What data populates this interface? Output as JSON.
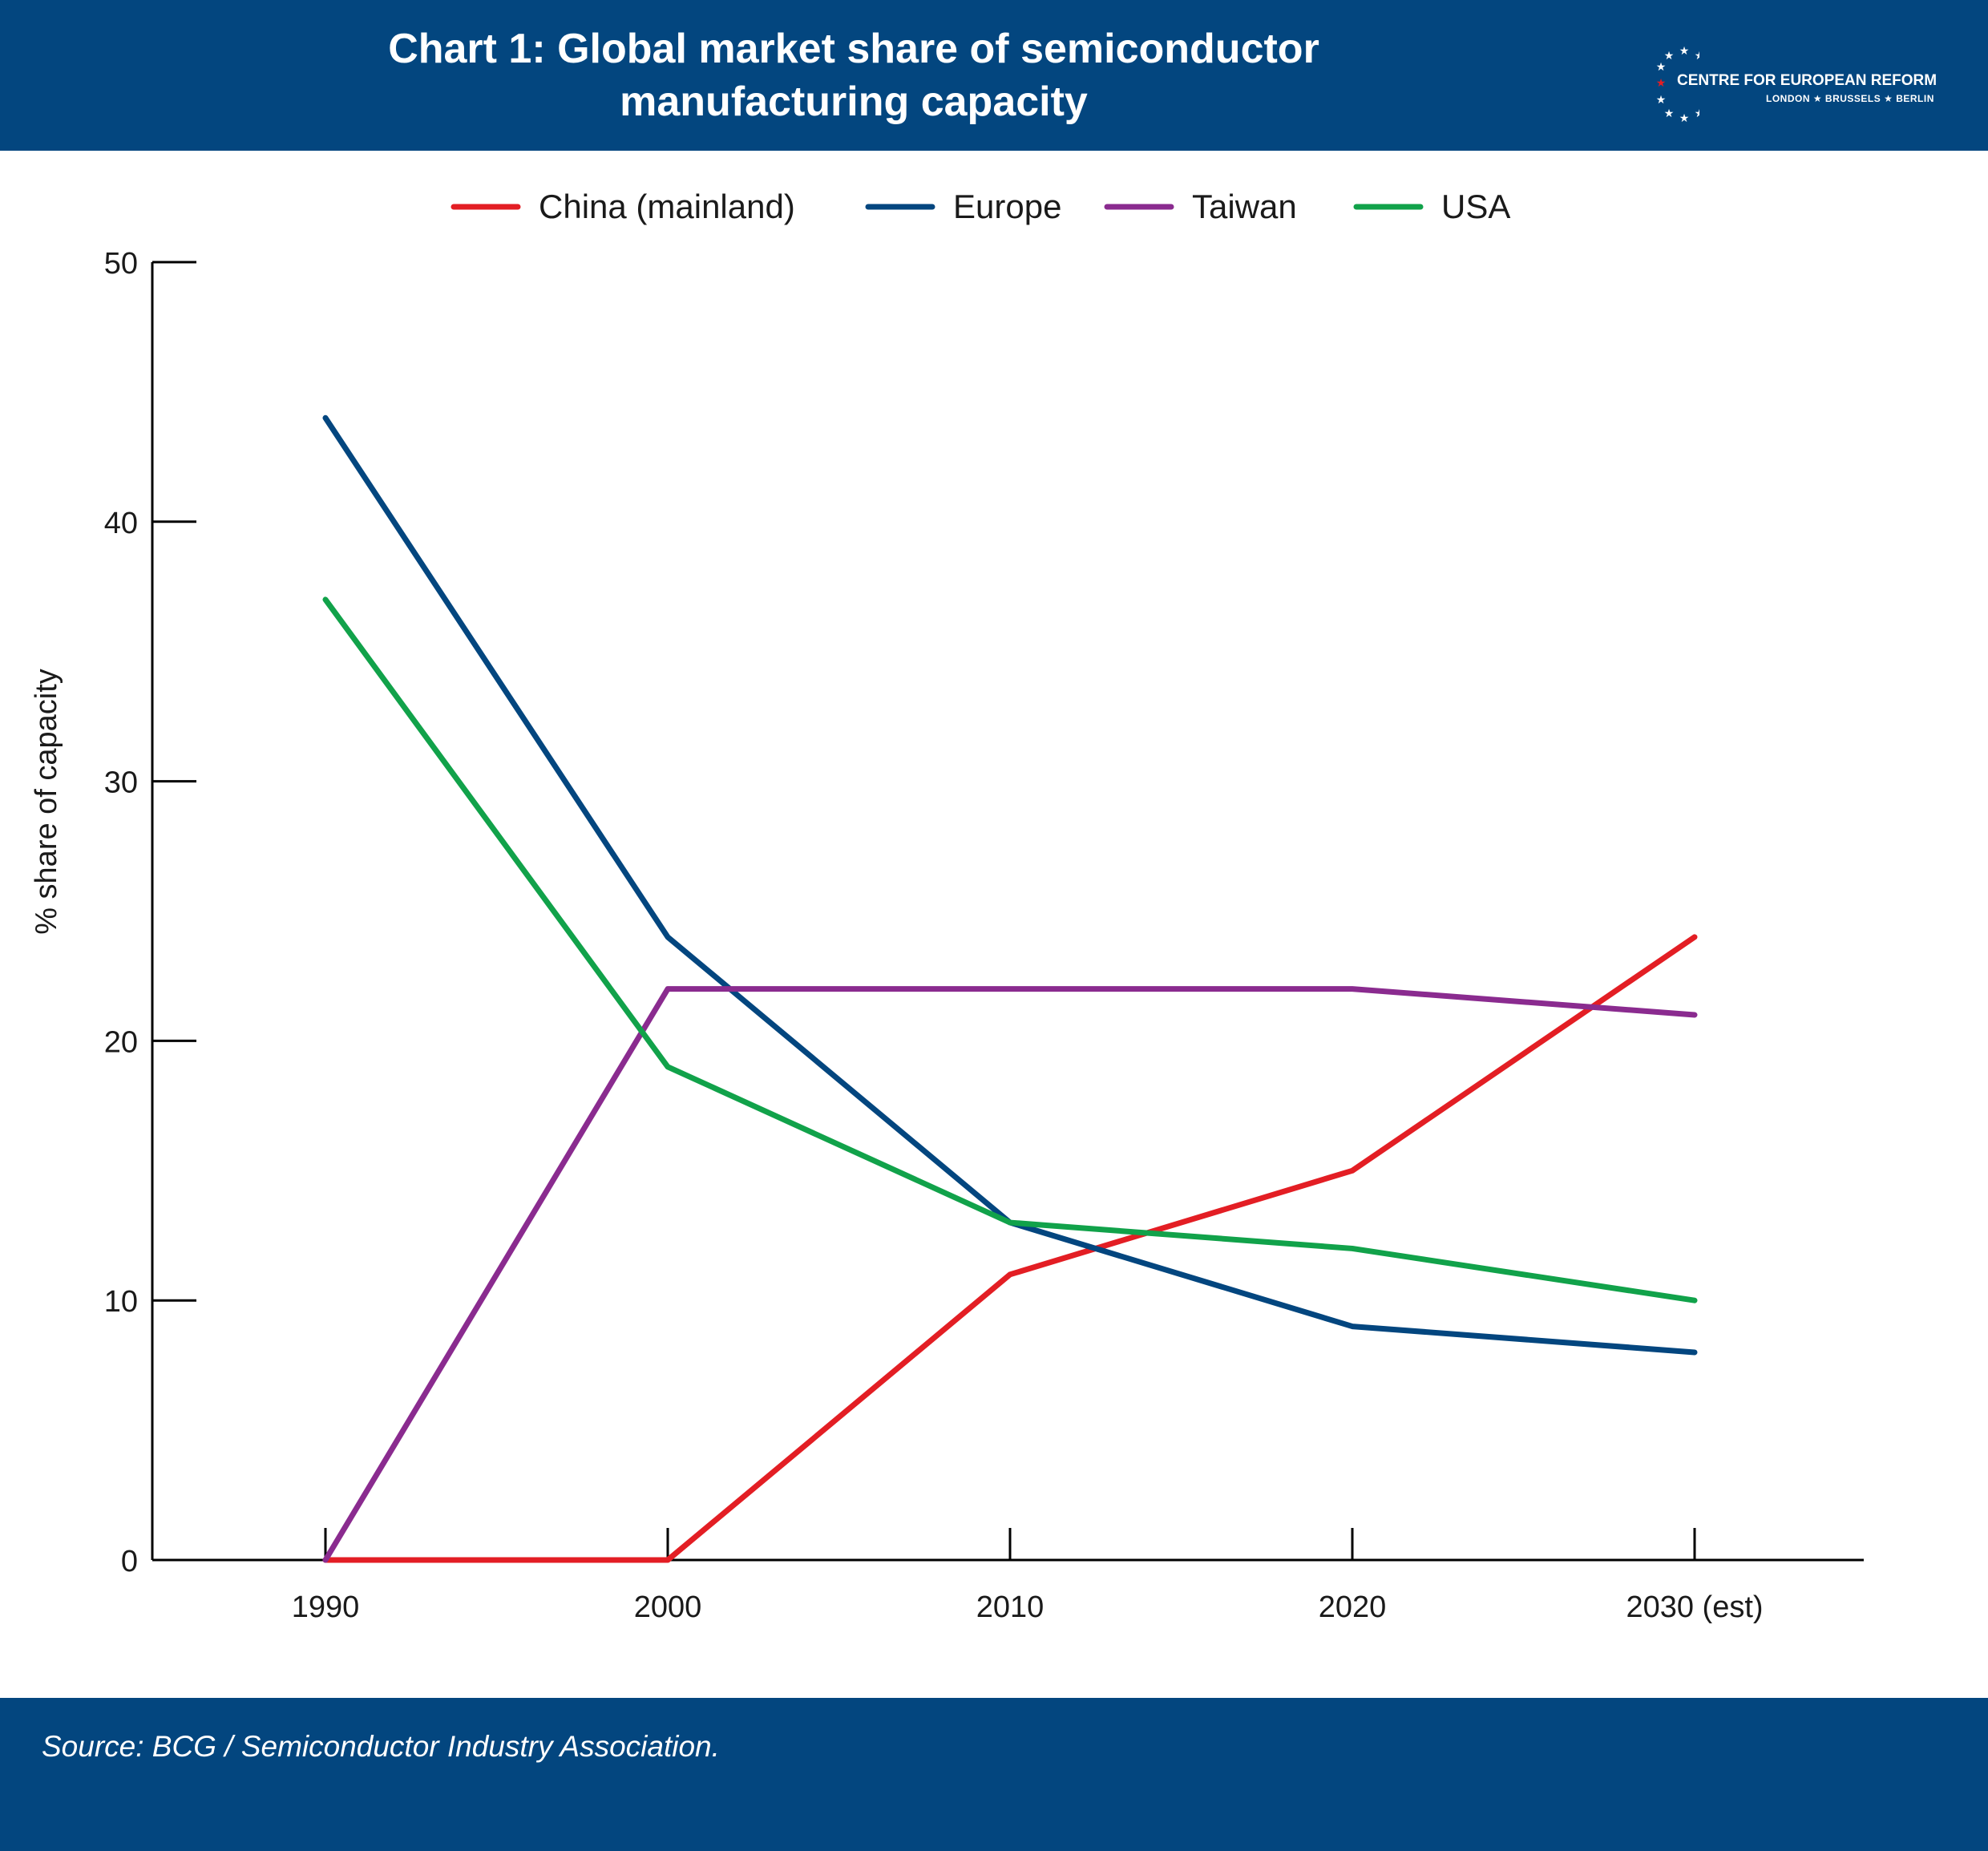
{
  "header": {
    "title": "Chart 1: Global market share of semiconductor manufacturing capacity",
    "logo": {
      "name": "CENTRE FOR EUROPEAN REFORM",
      "cities": "LONDON ★ BRUSSELS ★ BERLIN"
    }
  },
  "footer": {
    "source": "Source: BCG / Semiconductor Industry Association."
  },
  "colors": {
    "brand_blue": "#03467f",
    "china": "#e31e24",
    "europe": "#03467f",
    "taiwan": "#8a2b8f",
    "usa": "#11a24a"
  },
  "chart_data": {
    "type": "line",
    "title": "Chart 1: Global market share of semiconductor manufacturing capacity",
    "xlabel": "",
    "ylabel": "% share of capacity",
    "categories": [
      "1990",
      "2000",
      "2010",
      "2020",
      "2030 (est)"
    ],
    "ylim": [
      0,
      50
    ],
    "yticks": [
      0,
      10,
      20,
      30,
      40,
      50
    ],
    "grid": false,
    "legend": "top-center",
    "series": [
      {
        "name": "China (mainland)",
        "color": "#e31e24",
        "values": [
          0,
          0,
          11,
          15,
          24
        ]
      },
      {
        "name": "Europe",
        "color": "#03467f",
        "values": [
          44,
          24,
          13,
          9,
          8
        ]
      },
      {
        "name": "Taiwan",
        "color": "#8a2b8f",
        "values": [
          0,
          22,
          22,
          22,
          21
        ]
      },
      {
        "name": "USA",
        "color": "#11a24a",
        "values": [
          37,
          19,
          13,
          12,
          10
        ]
      }
    ]
  }
}
